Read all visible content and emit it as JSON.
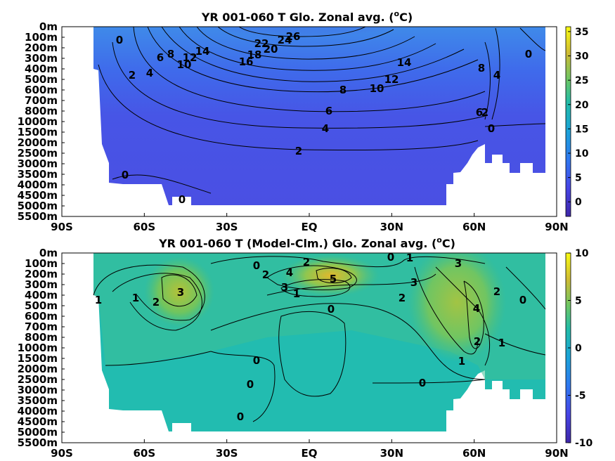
{
  "chart_data": [
    {
      "type": "heatmap",
      "title": "YR 001-060 T Glo. Zonal avg. (",
      "title_unit": "oC",
      "title_unit_sup": "o",
      "title_unit_base": "C",
      "title_close": ")",
      "x_ticks": [
        "90S",
        "60S",
        "30S",
        "EQ",
        "30N",
        "60N",
        "90N"
      ],
      "x_values": [
        -90,
        -60,
        -30,
        0,
        30,
        60,
        90
      ],
      "y_ticks": [
        "0m",
        "100m",
        "200m",
        "300m",
        "400m",
        "500m",
        "600m",
        "700m",
        "800m",
        "1000m",
        "1500m",
        "2000m",
        "2500m",
        "3000m",
        "3500m",
        "4000m",
        "4500m",
        "5000m",
        "5500m"
      ],
      "colorbar": {
        "min": -3,
        "max": 36,
        "ticks": [
          "35",
          "30",
          "25",
          "20",
          "15",
          "10",
          "5",
          "0"
        ],
        "tick_values": [
          35,
          30,
          25,
          20,
          15,
          10,
          5,
          0
        ]
      },
      "contour_labels": [
        "0",
        "26",
        "22",
        "24",
        "20",
        "18",
        "16",
        "14",
        "14",
        "12",
        "12",
        "10",
        "10",
        "8",
        "8",
        "6",
        "4",
        "2",
        "6",
        "4",
        "2",
        "0",
        "0",
        "0",
        "8",
        "4",
        "6",
        "2",
        "0"
      ]
    },
    {
      "type": "heatmap",
      "title": "YR 001-060 T (Model-Clm.) Glo. Zonal avg. (",
      "title_unit_sup": "o",
      "title_unit_base": "C",
      "title_close": ")",
      "x_ticks": [
        "90S",
        "60S",
        "30S",
        "EQ",
        "30N",
        "60N",
        "90N"
      ],
      "x_values": [
        -90,
        -60,
        -30,
        0,
        30,
        60,
        90
      ],
      "y_ticks": [
        "0m",
        "100m",
        "200m",
        "300m",
        "400m",
        "500m",
        "600m",
        "700m",
        "800m",
        "1000m",
        "1500m",
        "2000m",
        "2500m",
        "3000m",
        "3500m",
        "4000m",
        "4500m",
        "5000m",
        "5500m"
      ],
      "colorbar": {
        "min": -10,
        "max": 10,
        "ticks": [
          "10",
          "5",
          "0",
          "-5",
          "-10"
        ],
        "tick_values": [
          10,
          5,
          0,
          -5,
          -10
        ]
      },
      "contour_labels": [
        "1",
        "1",
        "2",
        "3",
        "0",
        "2",
        "4",
        "2",
        "5",
        "3",
        "1",
        "0",
        "0",
        "1",
        "3",
        "3",
        "2",
        "2",
        "4",
        "0",
        "2",
        "1",
        "1",
        "0",
        "0",
        "0",
        "0"
      ]
    }
  ]
}
